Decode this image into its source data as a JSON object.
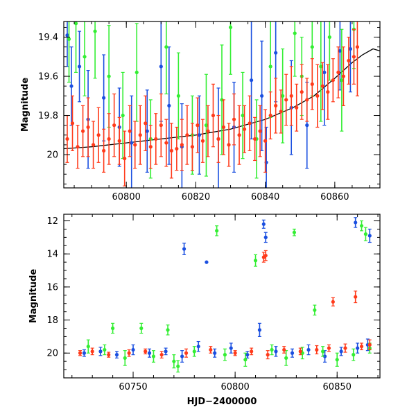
{
  "chart_data": [
    {
      "type": "scatter",
      "panel": "top",
      "xlabel": "",
      "ylabel": "Magnitude",
      "xlim": [
        60782,
        60873
      ],
      "ylim": [
        20.17,
        19.32
      ],
      "y_inverted": true,
      "x_ticks": [
        60800,
        60820,
        60840,
        60860
      ],
      "y_ticks": [
        19.4,
        19.6,
        19.8,
        20
      ],
      "x_minor_step": 5,
      "y_minor_step": 0.05,
      "grid": false,
      "legend": "none",
      "colors": {
        "blue": "#1a4fe0",
        "green": "#33ee33",
        "red": "#ff3a1a",
        "model": "#000000"
      },
      "series": [
        {
          "color": "blue",
          "x": [
            60783.0,
            60784.2,
            60786.5,
            60789.0,
            60793.5,
            60798.0,
            60801.5,
            60806.0,
            60810.0,
            60812.3,
            60816.0,
            60821.0,
            60826.5,
            60831.0,
            60836.0,
            60839.0,
            60840.3,
            60843.0,
            60847.5,
            60852.0,
            60857.0,
            60861.5,
            60864.5
          ],
          "y": [
            19.39,
            19.65,
            19.55,
            19.82,
            19.71,
            19.86,
            19.94,
            19.88,
            19.55,
            19.75,
            19.96,
            19.9,
            19.92,
            19.86,
            19.62,
            19.7,
            20.04,
            19.48,
            19.76,
            19.85,
            19.58,
            19.47,
            19.46
          ],
          "err": [
            0.16,
            0.2,
            0.18,
            0.25,
            0.22,
            0.2,
            0.24,
            0.21,
            0.28,
            0.3,
            0.22,
            0.2,
            0.26,
            0.23,
            0.3,
            0.28,
            0.18,
            0.25,
            0.24,
            0.22,
            0.27,
            0.2,
            0.22
          ]
        },
        {
          "color": "green",
          "x": [
            60783.5,
            60785.5,
            60788.0,
            60791.0,
            60795.0,
            60799.0,
            60803.0,
            60807.0,
            60811.5,
            60815.0,
            60819.0,
            60823.0,
            60827.5,
            60830.0,
            60833.5,
            60837.5,
            60841.5,
            60845.0,
            60848.5,
            60850.5,
            60853.5,
            60856.0,
            60858.5,
            60862.0,
            60865.5
          ],
          "y": [
            19.41,
            19.33,
            19.5,
            19.37,
            19.6,
            19.8,
            19.58,
            19.92,
            19.45,
            19.7,
            19.9,
            19.85,
            19.72,
            19.35,
            19.8,
            19.92,
            19.55,
            19.7,
            19.38,
            19.6,
            19.45,
            19.55,
            19.4,
            19.62,
            19.36
          ],
          "err": [
            0.22,
            0.25,
            0.2,
            0.24,
            0.26,
            0.22,
            0.25,
            0.2,
            0.24,
            0.22,
            0.2,
            0.26,
            0.28,
            0.24,
            0.22,
            0.2,
            0.26,
            0.24,
            0.22,
            0.2,
            0.25,
            0.28,
            0.22,
            0.26,
            0.2
          ]
        },
        {
          "color": "red",
          "x": [
            60783.0,
            60784.5,
            60786.0,
            60787.5,
            60789.0,
            60790.5,
            60792.0,
            60793.5,
            60795.0,
            60796.5,
            60798.0,
            60799.5,
            60801.0,
            60802.5,
            60804.0,
            60805.5,
            60807.0,
            60808.5,
            60810.0,
            60811.5,
            60813.0,
            60814.5,
            60816.0,
            60817.5,
            60819.0,
            60820.5,
            60822.0,
            60823.5,
            60825.0,
            60826.5,
            60828.0,
            60829.5,
            60831.0,
            60832.5,
            60834.0,
            60835.5,
            60837.0,
            60838.5,
            60840.0,
            60841.5,
            60843.0,
            60844.5,
            60846.0,
            60847.5,
            60849.0,
            60850.5,
            60852.0,
            60853.5,
            60855.0,
            60856.5,
            60858.0,
            60859.5,
            60861.0,
            60862.5,
            60864.0,
            60865.5,
            60866.5
          ],
          "y": [
            19.92,
            19.84,
            19.96,
            19.88,
            19.86,
            19.95,
            19.9,
            19.98,
            19.92,
            19.85,
            19.93,
            20.02,
            19.88,
            19.95,
            19.9,
            19.84,
            19.96,
            19.92,
            19.85,
            19.94,
            19.98,
            19.97,
            19.95,
            19.9,
            19.96,
            19.85,
            19.93,
            19.88,
            19.8,
            19.92,
            19.86,
            19.95,
            19.82,
            19.9,
            19.87,
            19.84,
            19.92,
            19.88,
            19.93,
            19.8,
            19.75,
            19.78,
            19.72,
            19.7,
            19.76,
            19.68,
            19.72,
            19.64,
            19.7,
            19.65,
            19.68,
            19.62,
            19.58,
            19.6,
            19.52,
            19.5,
            19.45
          ],
          "err": [
            0.12,
            0.14,
            0.11,
            0.13,
            0.15,
            0.12,
            0.14,
            0.11,
            0.13,
            0.16,
            0.12,
            0.14,
            0.13,
            0.12,
            0.15,
            0.14,
            0.11,
            0.13,
            0.16,
            0.12,
            0.14,
            0.11,
            0.13,
            0.15,
            0.12,
            0.14,
            0.11,
            0.13,
            0.16,
            0.12,
            0.14,
            0.11,
            0.13,
            0.15,
            0.12,
            0.14,
            0.11,
            0.13,
            0.16,
            0.12,
            0.14,
            0.11,
            0.13,
            0.15,
            0.12,
            0.14,
            0.11,
            0.13,
            0.16,
            0.12,
            0.14,
            0.11,
            0.13,
            0.15,
            0.12,
            0.14,
            0.25
          ]
        }
      ],
      "model_curve": {
        "x": [
          60782,
          60790,
          60800,
          60810,
          60820,
          60830,
          60840,
          60848,
          60854,
          60860,
          60865,
          60868,
          60871,
          60873
        ],
        "y": [
          19.97,
          19.96,
          19.94,
          19.92,
          19.9,
          19.87,
          19.82,
          19.76,
          19.7,
          19.61,
          19.53,
          19.49,
          19.46,
          19.47
        ]
      }
    },
    {
      "type": "scatter",
      "panel": "bottom",
      "xlabel": "HJD−2400000",
      "ylabel": "Magnitude",
      "xlim": [
        60716,
        60871
      ],
      "ylim": [
        21.5,
        11.6
      ],
      "y_inverted": true,
      "x_ticks": [
        60750,
        60800,
        60850
      ],
      "y_ticks": [
        12,
        14,
        16,
        18,
        20
      ],
      "x_minor_step": 10,
      "y_minor_step": 0.5,
      "grid": false,
      "legend": "none",
      "series": [
        {
          "color": "blue",
          "x": [
            60775,
            60786,
            60814,
            60815,
            60859,
            60866,
            60726,
            60734,
            60742,
            60750,
            60758,
            60766,
            60774,
            60782,
            60790,
            60798,
            60806,
            60812,
            60820,
            60828,
            60836,
            60844,
            60852,
            60860,
            60865
          ],
          "y": [
            13.7,
            14.5,
            12.2,
            13.0,
            12.1,
            12.9,
            20.0,
            19.9,
            20.1,
            19.8,
            20.0,
            19.9,
            20.2,
            19.6,
            20.0,
            19.7,
            20.1,
            18.6,
            19.9,
            20.0,
            19.8,
            20.2,
            19.9,
            19.7,
            19.5
          ],
          "err": [
            0.35,
            0.0,
            0.25,
            0.3,
            0.3,
            0.4,
            0.2,
            0.25,
            0.2,
            0.3,
            0.25,
            0.2,
            0.35,
            0.3,
            0.25,
            0.3,
            0.2,
            0.4,
            0.3,
            0.25,
            0.3,
            0.35,
            0.25,
            0.3,
            0.35
          ]
        },
        {
          "color": "green",
          "x": [
            60791,
            60810,
            60829,
            60862,
            60864,
            60740,
            60754,
            60767,
            60772,
            60839,
            60728,
            60736,
            60746,
            60760,
            60770,
            60780,
            60795,
            60805,
            60818,
            60825,
            60833,
            60843,
            60850,
            60858,
            60866
          ],
          "y": [
            12.6,
            14.4,
            12.7,
            12.3,
            12.8,
            18.5,
            18.5,
            18.6,
            20.8,
            17.4,
            19.6,
            19.8,
            20.3,
            20.2,
            20.5,
            19.9,
            20.1,
            20.4,
            19.8,
            20.3,
            20.0,
            19.9,
            20.4,
            20.1,
            19.7
          ],
          "err": [
            0.3,
            0.35,
            0.2,
            0.3,
            0.4,
            0.3,
            0.3,
            0.3,
            0.35,
            0.3,
            0.4,
            0.3,
            0.45,
            0.35,
            0.4,
            0.3,
            0.35,
            0.4,
            0.3,
            0.45,
            0.35,
            0.3,
            0.4,
            0.35,
            0.3
          ]
        },
        {
          "color": "red",
          "x": [
            60814,
            60815,
            60848,
            60859,
            60724,
            60730,
            60738,
            60748,
            60756,
            60764,
            60776,
            60788,
            60800,
            60808,
            60816,
            60824,
            60832,
            60840,
            60846,
            60854,
            60862,
            60866
          ],
          "y": [
            14.2,
            14.1,
            16.9,
            16.6,
            20.0,
            19.9,
            20.1,
            20.0,
            19.9,
            20.1,
            20.0,
            19.8,
            20.0,
            19.9,
            20.1,
            19.8,
            19.9,
            19.8,
            19.7,
            19.7,
            19.6,
            19.5
          ],
          "err": [
            0.3,
            0.3,
            0.25,
            0.35,
            0.15,
            0.2,
            0.15,
            0.2,
            0.15,
            0.2,
            0.25,
            0.2,
            0.15,
            0.2,
            0.25,
            0.2,
            0.2,
            0.25,
            0.2,
            0.25,
            0.2,
            0.3
          ]
        }
      ]
    }
  ]
}
